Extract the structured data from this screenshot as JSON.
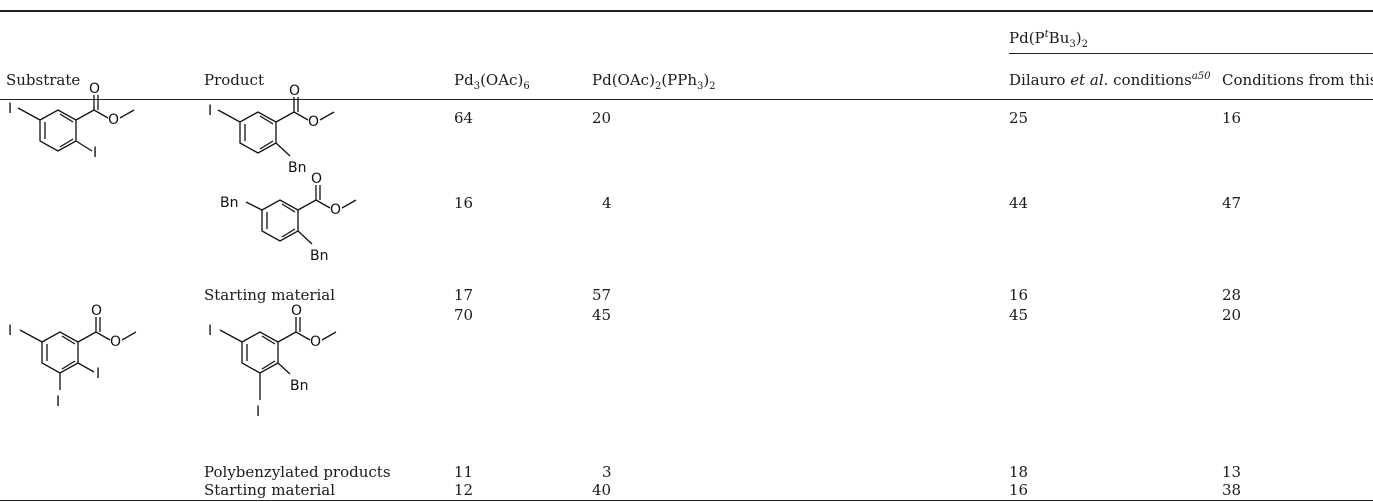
{
  "table": {
    "group_header": {
      "pre": "Pd(P",
      "sup": "t",
      "mid": "Bu",
      "sub1": "3",
      "close": ")",
      "sub2": "2"
    },
    "headers": {
      "substrate": "Substrate",
      "product": "Product",
      "col1": {
        "pre": "Pd",
        "sub1": "3",
        "mid": "(OAc)",
        "sub2": "6"
      },
      "col2": {
        "pre": "Pd(OAc)",
        "sub1": "2",
        "mid": "(PPh",
        "sub2": "3",
        "close": ")",
        "sub3": "2"
      },
      "col3": {
        "pre": "Dilauro ",
        "italic": "et al.",
        "post": " conditions",
        "sup": "a50"
      },
      "col4": "Conditions from this work"
    },
    "rows": [
      {
        "product_text": "",
        "v1": "64",
        "v2": "20",
        "v3": "25",
        "v4": "16"
      },
      {
        "product_text": "",
        "v1": "16",
        "v2": "4",
        "v3": "44",
        "v4": "47"
      },
      {
        "product_text": "Starting material",
        "v1": "17",
        "v2": "57",
        "v3": "16",
        "v4": "28"
      },
      {
        "product_text": "",
        "v1": "70",
        "v2": "45",
        "v3": "45",
        "v4": "20"
      },
      {
        "product_text": "Polybenzylated products",
        "v1": "11",
        "v2": "3",
        "v3": "18",
        "v4": "13"
      },
      {
        "product_text": "Starting material",
        "v1": "12",
        "v2": "40",
        "v3": "16",
        "v4": "38"
      }
    ]
  },
  "structures": {
    "atom_I": "I",
    "atom_O": "O",
    "group_Bn": "Bn"
  }
}
